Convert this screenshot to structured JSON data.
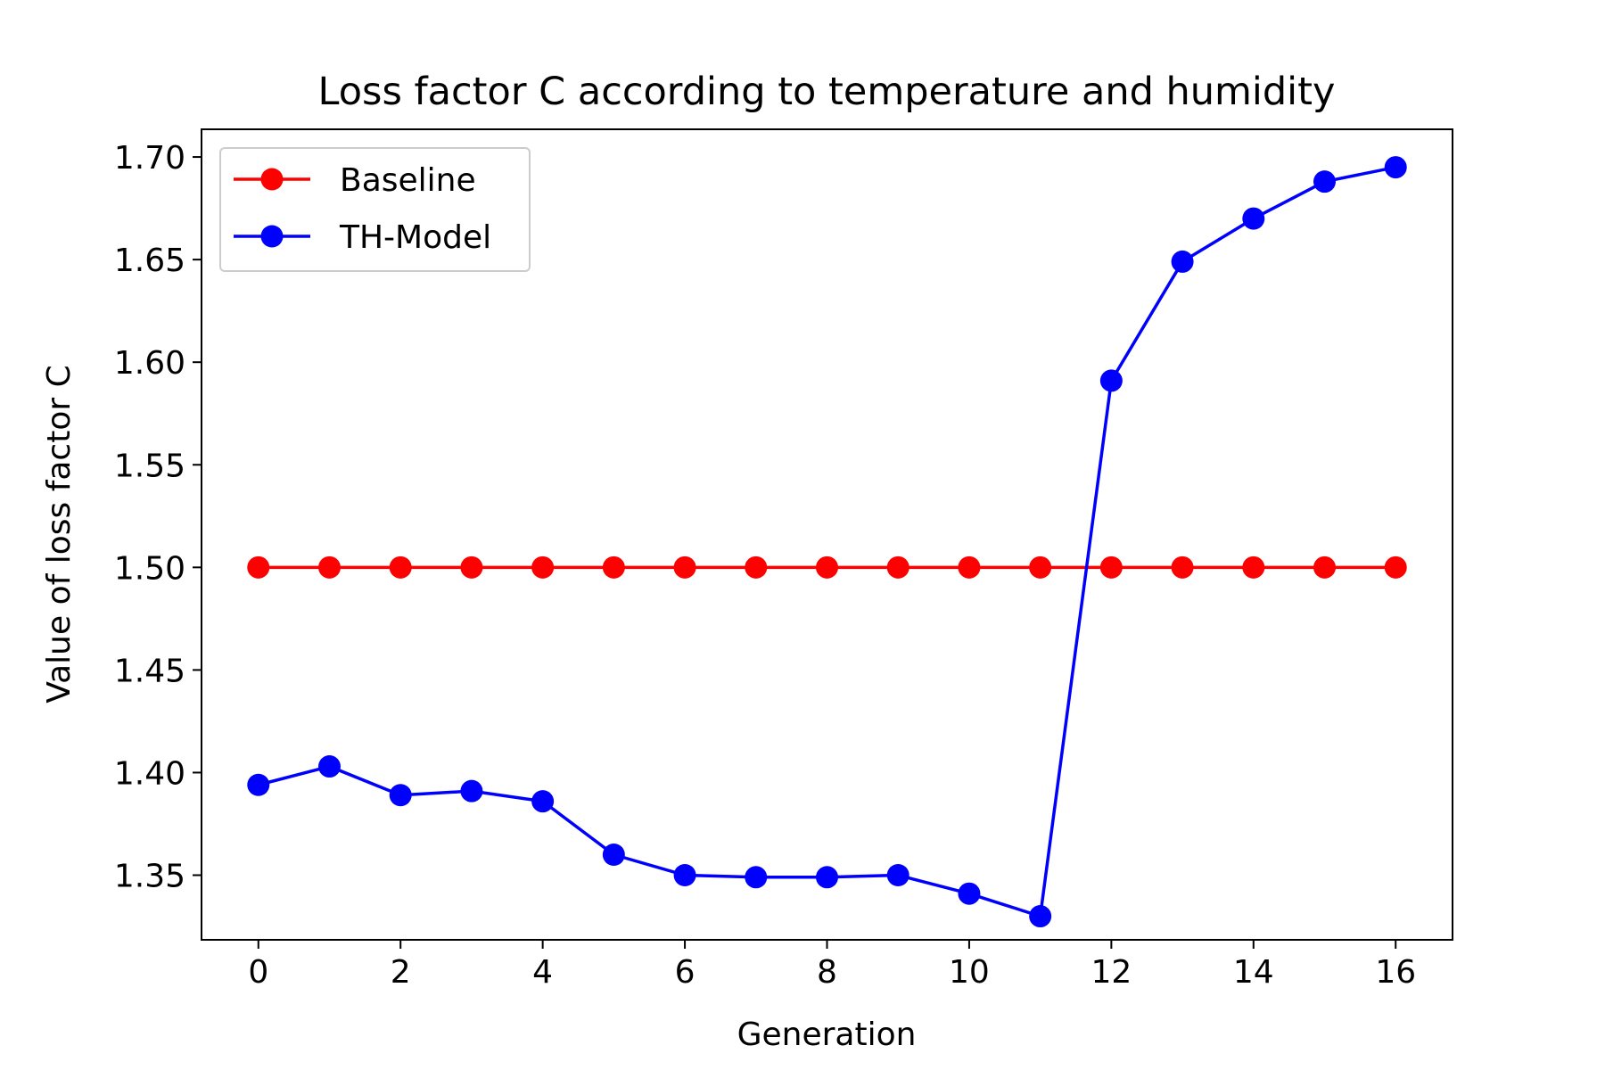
{
  "chart_data": {
    "type": "line",
    "title": "Loss factor C according to temperature and humidity",
    "xlabel": "Generation",
    "ylabel": "Value of loss factor C",
    "xlim": [
      -0.8,
      16.8
    ],
    "ylim": [
      1.3185,
      1.7135
    ],
    "xticks": [
      0,
      2,
      4,
      6,
      8,
      10,
      12,
      14,
      16
    ],
    "yticks": [
      1.35,
      1.4,
      1.45,
      1.5,
      1.55,
      1.6,
      1.65,
      1.7
    ],
    "grid": false,
    "legend_position": "top-left",
    "x": [
      0,
      1,
      2,
      3,
      4,
      5,
      6,
      7,
      8,
      9,
      10,
      11,
      12,
      13,
      14,
      15,
      16
    ],
    "series": [
      {
        "name": "Baseline",
        "color": "#ff0000",
        "values": [
          1.5,
          1.5,
          1.5,
          1.5,
          1.5,
          1.5,
          1.5,
          1.5,
          1.5,
          1.5,
          1.5,
          1.5,
          1.5,
          1.5,
          1.5,
          1.5,
          1.5
        ]
      },
      {
        "name": "TH-Model",
        "color": "#0000ff",
        "values": [
          1.394,
          1.403,
          1.389,
          1.391,
          1.386,
          1.36,
          1.35,
          1.349,
          1.349,
          1.35,
          1.341,
          1.33,
          1.591,
          1.649,
          1.67,
          1.688,
          1.695
        ]
      }
    ]
  }
}
